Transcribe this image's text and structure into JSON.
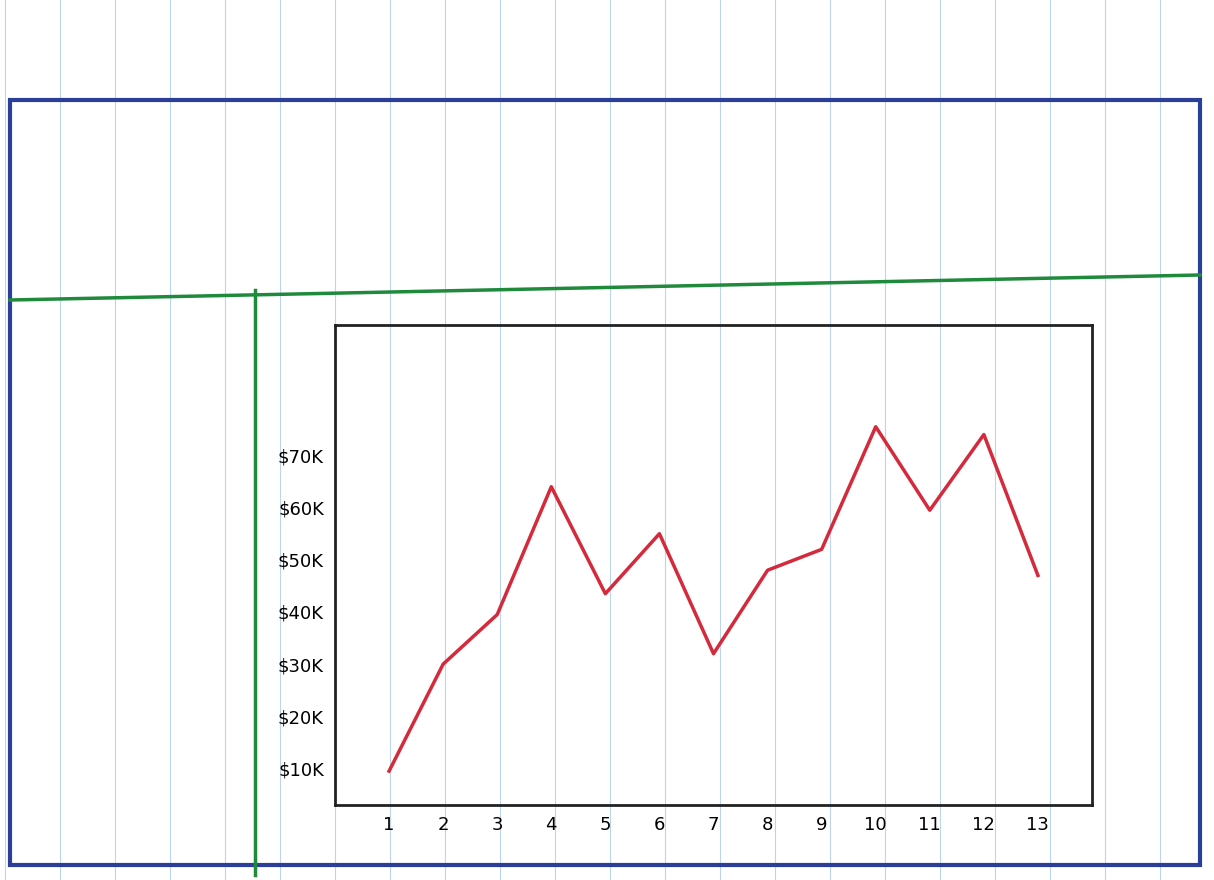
{
  "chart_data": {
    "type": "line",
    "x": [
      1,
      2,
      3,
      4,
      5,
      6,
      7,
      8,
      9,
      10,
      11,
      12,
      13
    ],
    "values": [
      9500,
      30000,
      39500,
      64000,
      43500,
      55000,
      32000,
      48000,
      52000,
      75500,
      59500,
      74000,
      47000
    ],
    "color": "#d42a3c",
    "xlim": [
      0,
      14
    ],
    "xticks": [
      1,
      2,
      3,
      4,
      5,
      6,
      7,
      8,
      9,
      10,
      11,
      12,
      13
    ],
    "ylim": [
      3000,
      95000
    ],
    "yticks": [
      {
        "value": 10000,
        "label": "$10K"
      },
      {
        "value": 20000,
        "label": "$20K"
      },
      {
        "value": 30000,
        "label": "$30K"
      },
      {
        "value": 40000,
        "label": "$40K"
      },
      {
        "value": 50000,
        "label": "$50K"
      },
      {
        "value": 60000,
        "label": "$60K"
      },
      {
        "value": 70000,
        "label": "$70K"
      }
    ],
    "grid": false
  }
}
